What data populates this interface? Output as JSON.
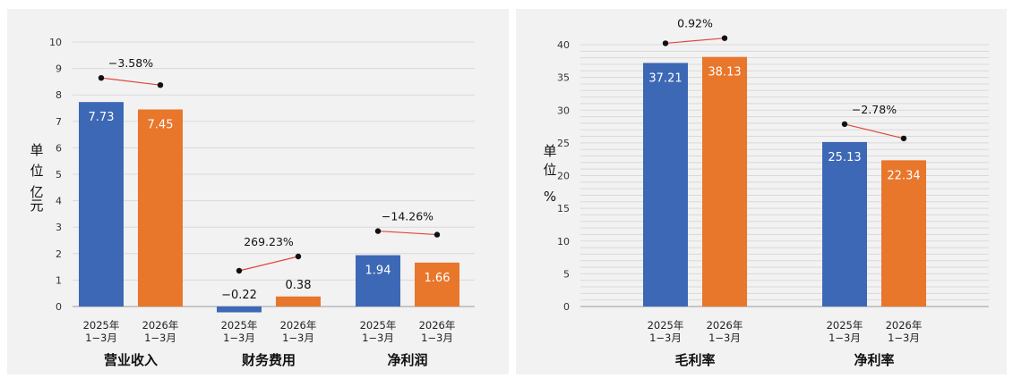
{
  "colors": {
    "series_2025": "#3d68b5",
    "series_2026": "#e8762b",
    "change_line": "#e0463c",
    "marker": "#111111",
    "grid": "#d9d9d9"
  },
  "chart_data": [
    {
      "type": "bar",
      "ylabel_chars": [
        "单",
        "位",
        "亿",
        "元"
      ],
      "ylim": [
        0,
        10
      ],
      "yticks": [
        0,
        1,
        2,
        3,
        4,
        5,
        6,
        7,
        8,
        9,
        10
      ],
      "categories": [
        "营业收入",
        "财务费用",
        "净利润"
      ],
      "period_labels": [
        [
          "2025年",
          "1−3月"
        ],
        [
          "2026年",
          "1−3月"
        ]
      ],
      "series": [
        {
          "values": [
            7.73,
            -0.22,
            1.94
          ],
          "labels": [
            "7.73",
            "−0.22",
            "1.94"
          ]
        },
        {
          "values": [
            7.45,
            0.38,
            1.66
          ],
          "labels": [
            "7.45",
            "0.38",
            "1.66"
          ]
        }
      ],
      "changes": [
        "−3.58%",
        "269.23%",
        "−14.26%"
      ]
    },
    {
      "type": "bar",
      "ylabel_chars": [
        "单",
        "位",
        "%"
      ],
      "ylim": [
        0,
        40
      ],
      "yticks": [
        0,
        5,
        10,
        15,
        20,
        25,
        30,
        35,
        40
      ],
      "categories": [
        "毛利率",
        "净利率"
      ],
      "period_labels": [
        [
          "2025年",
          "1−3月"
        ],
        [
          "2026年",
          "1−3月"
        ]
      ],
      "series": [
        {
          "values": [
            37.21,
            25.13
          ],
          "labels": [
            "37.21",
            "25.13"
          ]
        },
        {
          "values": [
            38.13,
            22.34
          ],
          "labels": [
            "38.13",
            "22.34"
          ]
        }
      ],
      "changes": [
        "0.92%",
        "−2.78%"
      ]
    }
  ]
}
